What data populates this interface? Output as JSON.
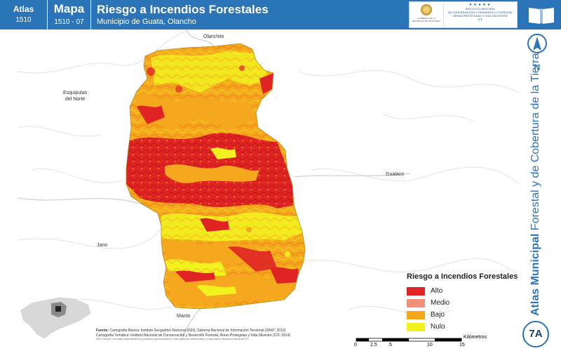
{
  "header": {
    "atlas_label": "Atlas",
    "atlas_code": "1510",
    "mapa_label": "Mapa",
    "mapa_code": "1510 - 07",
    "title": "Riesgo a Incendios Forestales",
    "subtitle": "Municipio de Guata, Olancho",
    "logo_left_text": "GOBIERNO DE LA REPÚBLICA DE HONDURAS",
    "logo_right_line1": "INSTITUTO NACIONAL",
    "logo_right_line2": "DE CONSERVACIÓN Y DESARROLLO FORESTAL",
    "logo_right_line3": "ÁREAS PROTEGIDAS Y VIDA SILVESTRE",
    "logo_right_abbr": "ICF"
  },
  "places": {
    "olanchito": "Olanchito",
    "esquipulas": "Esquipulas\ndel Norte",
    "gualaco": "Gualaco",
    "jano": "Jano",
    "manto": "Manto"
  },
  "legend": {
    "title": "Riesgo a Incendios Forestales",
    "items": [
      {
        "label": "Alto",
        "color": "#e02424"
      },
      {
        "label": "Medio",
        "color": "#f0907a"
      },
      {
        "label": "Bajo",
        "color": "#f5a81e"
      },
      {
        "label": "Nulo",
        "color": "#f2f21e"
      }
    ]
  },
  "sources": {
    "label": "Fuente:",
    "line1": "Cartografía Básica: Instituto Geográfico Nacional (IGN), Sistema Nacional de Información Territorial (SINIT, 2013)",
    "line2": "Cartografía Temática: Instituto Nacional de Conservación y Desarrollo Forestal, Áreas Protegidas y Vida Silvestre (ICF, 2014)",
    "note": "Nota Técnica: Los límites administrativos y fronteras representados en este mapa son referenciales; la información incluida es oficial del ICF."
  },
  "scale": {
    "ticks": [
      "0",
      "2.5",
      "5",
      "10",
      "15"
    ],
    "unit": "Kilómetros"
  },
  "north_label": "N",
  "side_text": {
    "strong": "Atlas Municipal",
    "rest": " Forestal y de Cobertura de la Tierra"
  },
  "badge": "7A",
  "colors": {
    "header_bg": "#2c74b8",
    "alto": "#e02424",
    "medio": "#f0907a",
    "bajo": "#f5a81e",
    "nulo": "#f2f21e"
  }
}
